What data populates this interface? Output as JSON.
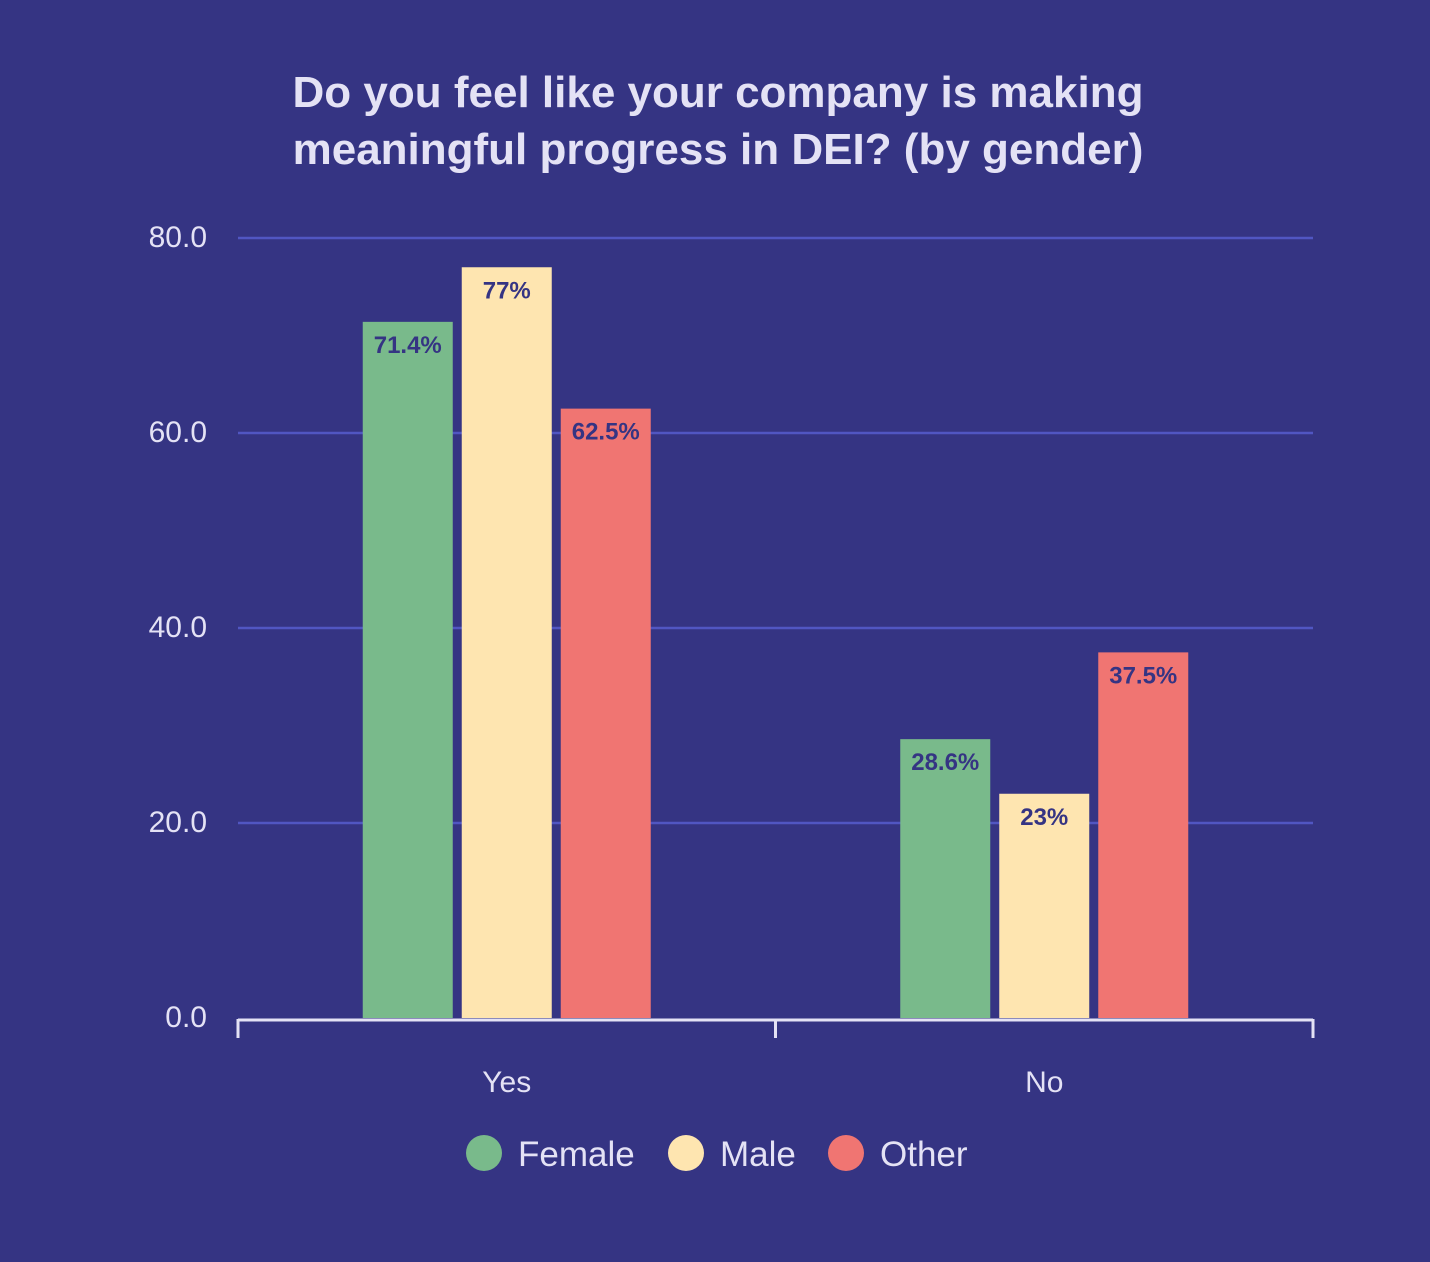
{
  "chart_data": {
    "type": "bar",
    "title_lines": [
      "Do you feel like your company is making",
      "meaningful progress in DEI? (by gender)"
    ],
    "categories": [
      "Yes",
      "No"
    ],
    "series": [
      {
        "name": "Female",
        "color": "#79BA8B",
        "values": [
          71.4,
          28.6
        ],
        "labels": [
          "71.4%",
          "28.6%"
        ]
      },
      {
        "name": "Male",
        "color": "#FEE5B0",
        "values": [
          77,
          23
        ],
        "labels": [
          "77%",
          "23%"
        ]
      },
      {
        "name": "Other",
        "color": "#F07572",
        "values": [
          62.5,
          37.5
        ],
        "labels": [
          "62.5%",
          "37.5%"
        ]
      }
    ],
    "ylim": [
      0,
      80
    ],
    "yticks": [
      "0.0",
      "20.0",
      "40.0",
      "60.0",
      "80.0"
    ],
    "ytick_values": [
      0,
      20,
      40,
      60,
      80
    ],
    "grid": true,
    "legend_position": "bottom-center"
  },
  "colors": {
    "background": "#353483",
    "gridline": "#5156C2",
    "axis": "#E4E2F5",
    "text": "#E4E2F5",
    "data_label": "#353483"
  }
}
